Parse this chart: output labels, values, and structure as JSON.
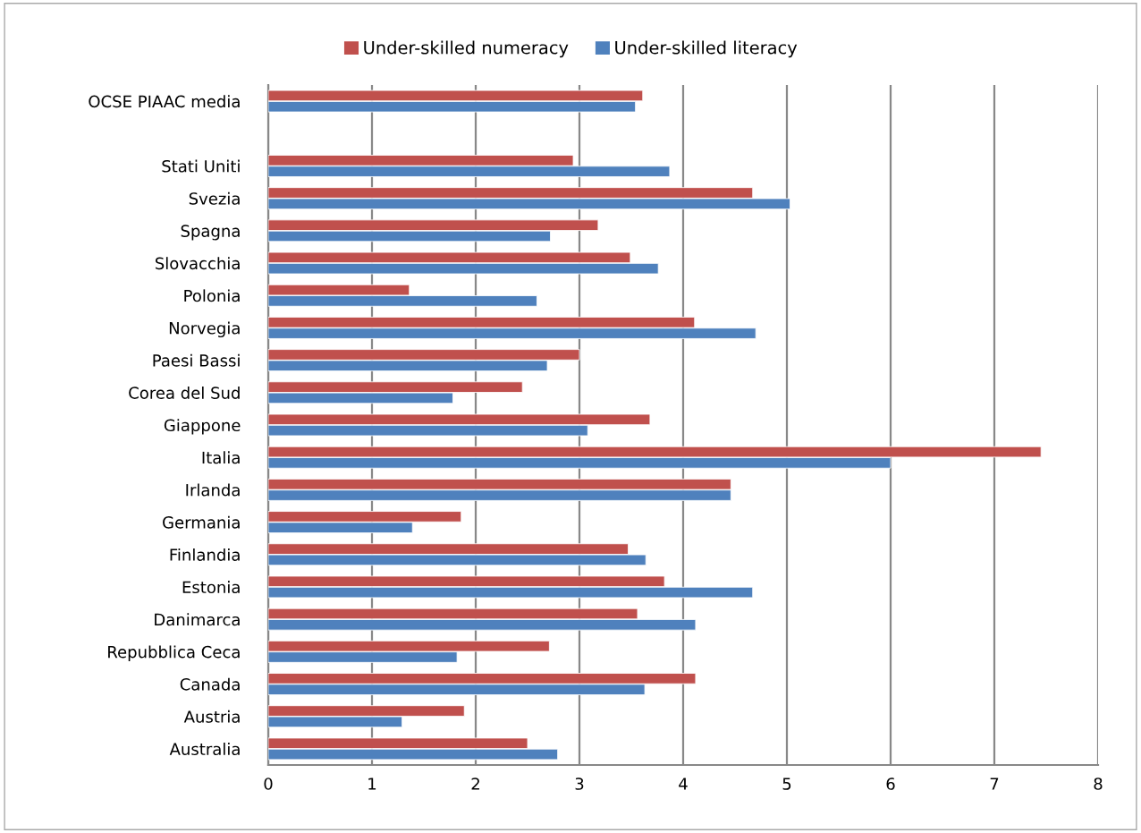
{
  "chart_data": {
    "type": "bar",
    "orientation": "horizontal",
    "categories": [
      "OCSE PIAAC media",
      null,
      "Stati Uniti",
      "Svezia",
      "Spagna",
      "Slovacchia",
      "Polonia",
      "Norvegia",
      "Paesi Bassi",
      "Corea del Sud",
      "Giappone",
      "Italia",
      "Irlanda",
      "Germania",
      "Finlandia",
      "Estonia",
      "Danimarca",
      "Repubblica Ceca",
      "Canada",
      "Austria",
      "Australia"
    ],
    "series": [
      {
        "name": "Under-skilled numeracy",
        "color": "#c0504d",
        "values": [
          3.61,
          null,
          2.94,
          4.67,
          3.18,
          3.49,
          1.36,
          4.11,
          3.0,
          2.45,
          3.68,
          7.45,
          4.46,
          1.86,
          3.47,
          3.82,
          3.56,
          2.71,
          4.12,
          1.89,
          2.5
        ]
      },
      {
        "name": "Under-skilled literacy",
        "color": "#4f81bd",
        "values": [
          3.54,
          null,
          3.87,
          5.03,
          2.72,
          3.76,
          2.59,
          4.7,
          2.69,
          1.78,
          3.08,
          6.0,
          4.46,
          1.39,
          3.64,
          4.67,
          4.12,
          1.82,
          3.63,
          1.29,
          2.79
        ]
      }
    ],
    "xlim": [
      0,
      8
    ],
    "xticks": [
      0,
      1,
      2,
      3,
      4,
      5,
      6,
      7,
      8
    ],
    "grid": "x",
    "legend": "top"
  }
}
